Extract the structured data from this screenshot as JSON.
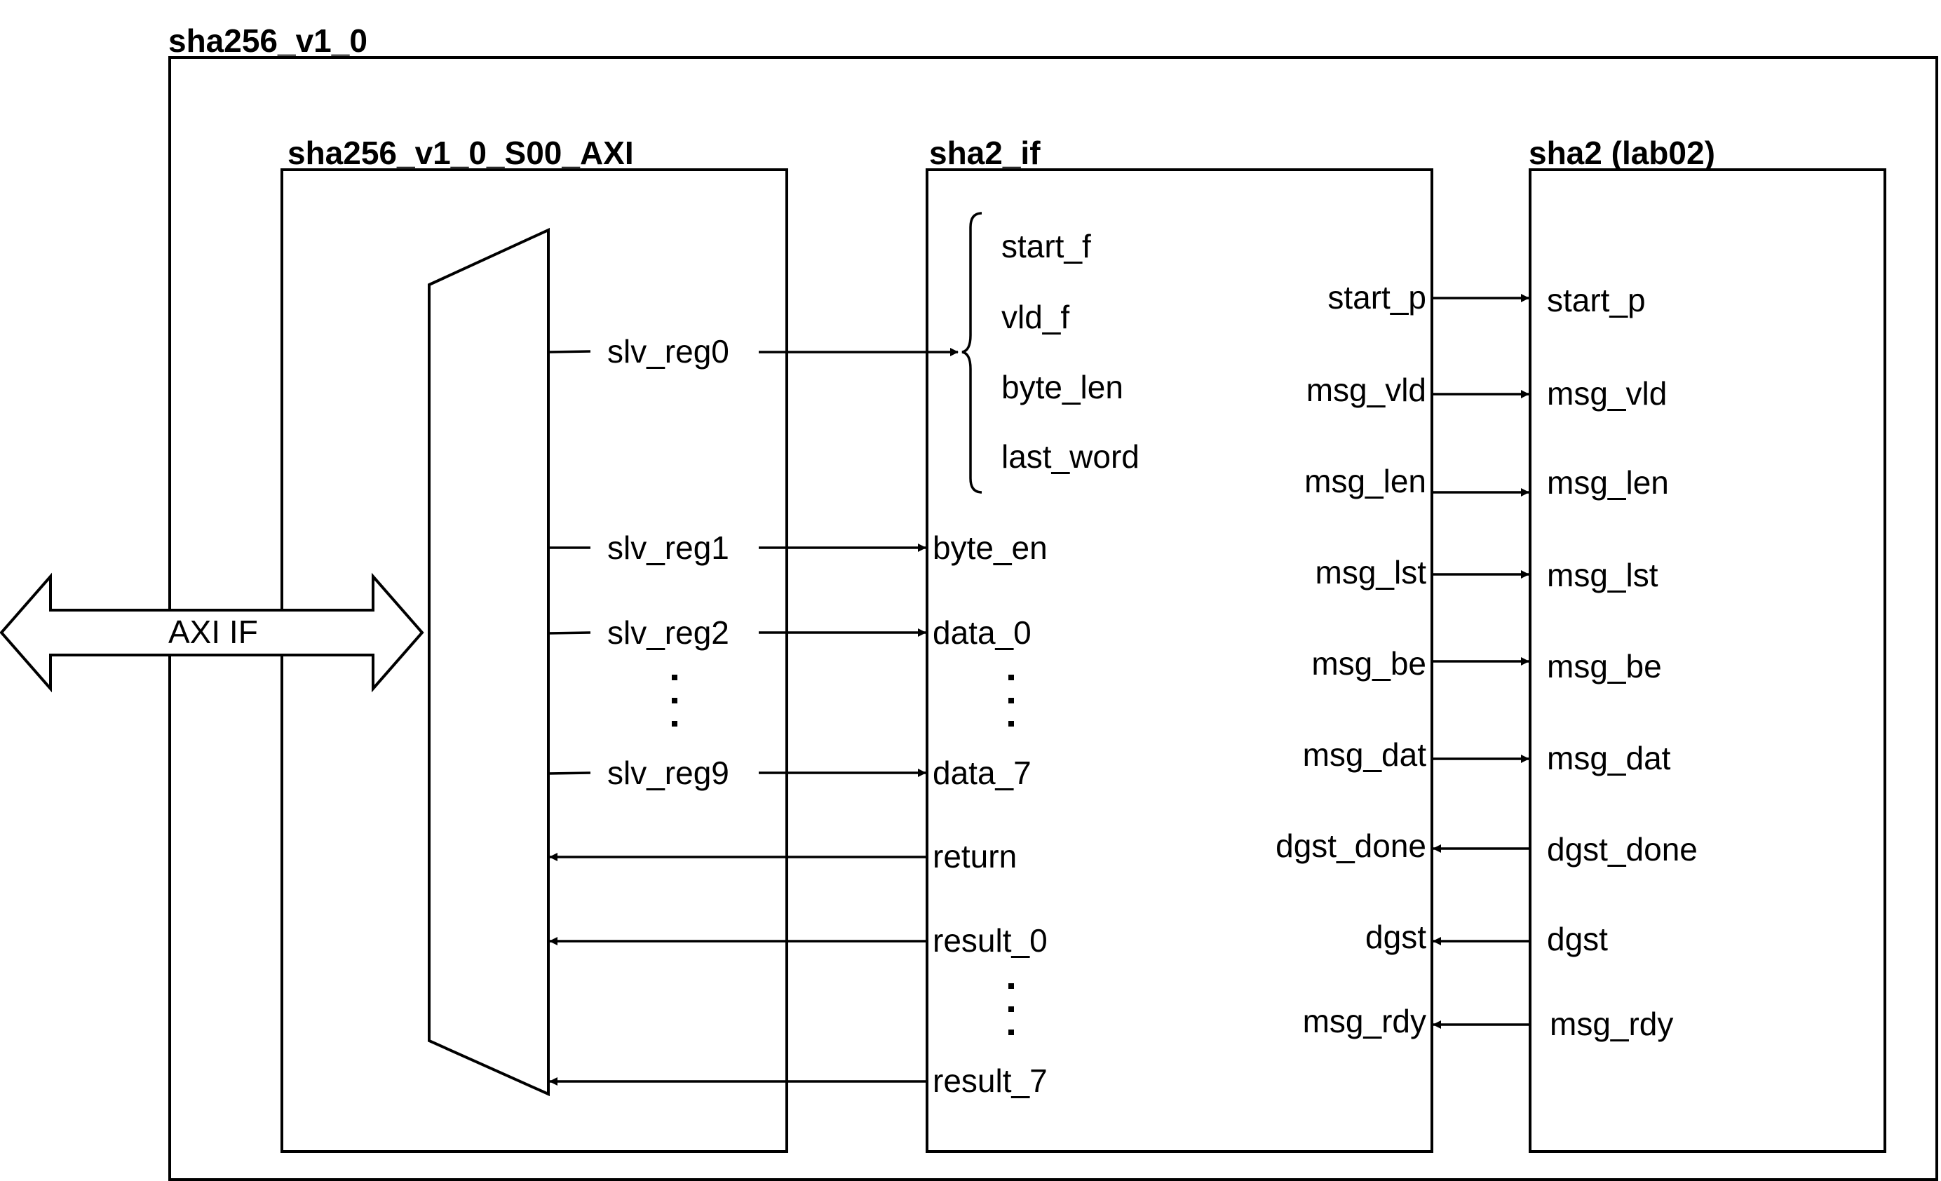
{
  "top_module": {
    "title": "sha256_v1_0"
  },
  "axi_block": {
    "title": "sha256_v1_0_S00_AXI",
    "registers": [
      "slv_reg0",
      "slv_reg1",
      "slv_reg2",
      "slv_reg9"
    ],
    "interface_label": "AXI IF"
  },
  "if_block": {
    "title": "sha2_if",
    "reg0_fields": [
      "start_f",
      "vld_f",
      "byte_len",
      "last_word"
    ],
    "inputs": [
      "byte_en",
      "data_0",
      "data_7"
    ],
    "outputs": [
      "return",
      "result_0",
      "result_7"
    ],
    "right_ports": [
      "start_p",
      "msg_vld",
      "msg_len",
      "msg_lst",
      "msg_be",
      "msg_dat",
      "dgst_done",
      "dgst",
      "msg_rdy"
    ]
  },
  "core_block": {
    "title": "sha2 (lab02)",
    "ports": [
      "start_p",
      "msg_vld",
      "msg_len",
      "msg_lst",
      "msg_be",
      "msg_dat",
      "dgst_done",
      "dgst",
      "msg_rdy"
    ]
  }
}
